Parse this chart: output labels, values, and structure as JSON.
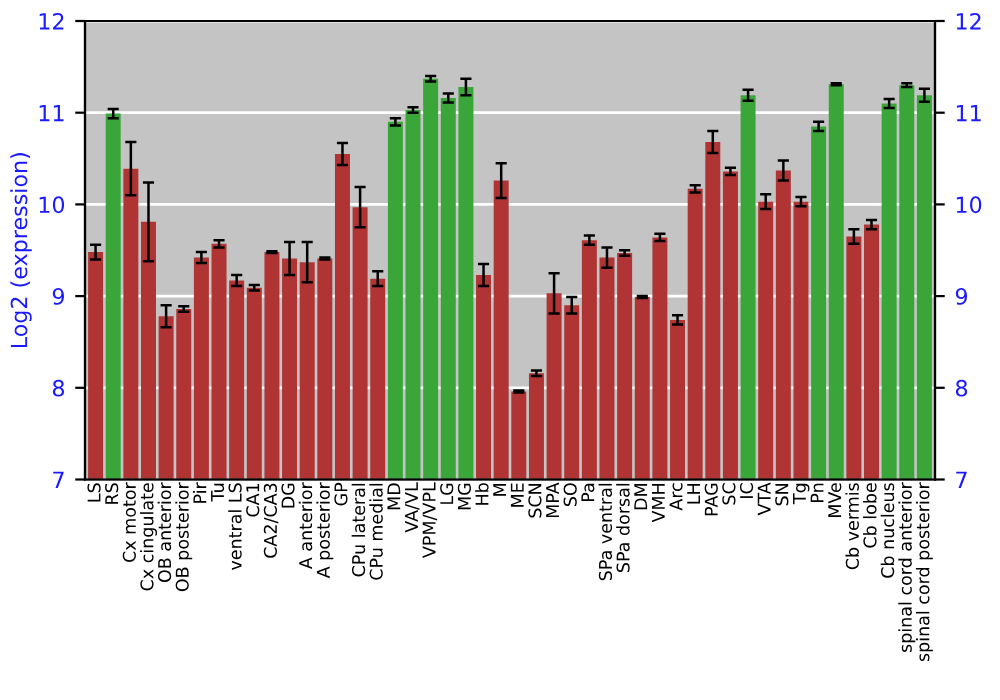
{
  "chart_data": {
    "type": "bar",
    "ylabel": "Log2 (expression)",
    "categories": [
      "LS",
      "RS",
      "Cx motor",
      "Cx cingulate",
      "OB anterior",
      "OB posterior",
      "Pir",
      "Tu",
      "ventral LS",
      "CA1",
      "CA2/CA3",
      "DG",
      "A anterior",
      "A posterior",
      "GP",
      "CPu lateral",
      "CPu medial",
      "MD",
      "VA/VL",
      "VPM/VPL",
      "LG",
      "MG",
      "Hb",
      "M",
      "ME",
      "SCN",
      "MPA",
      "SO",
      "Pa",
      "SPa ventral",
      "SPa dorsal",
      "DM",
      "VMH",
      "Arc",
      "LH",
      "PAG",
      "SC",
      "IC",
      "VTA",
      "SN",
      "Tg",
      "Pn",
      "MVe",
      "Cb vermis",
      "Cb lobe",
      "Cb nucleus",
      "spinal cord anterior",
      "spinal cord posterior"
    ],
    "values": [
      9.48,
      10.99,
      10.39,
      9.81,
      8.78,
      8.86,
      9.42,
      9.57,
      9.17,
      9.09,
      9.48,
      9.41,
      9.37,
      9.41,
      10.55,
      9.97,
      9.19,
      10.9,
      11.03,
      11.37,
      11.16,
      11.28,
      9.23,
      10.26,
      7.96,
      8.16,
      9.03,
      8.9,
      9.61,
      9.42,
      9.47,
      8.99,
      9.64,
      8.74,
      10.17,
      10.68,
      10.36,
      11.19,
      10.03,
      10.37,
      10.03,
      10.85,
      11.31,
      9.65,
      9.78,
      11.1,
      11.3,
      11.19
    ],
    "errors": [
      0.08,
      0.05,
      0.29,
      0.43,
      0.12,
      0.03,
      0.06,
      0.04,
      0.06,
      0.03,
      0.01,
      0.18,
      0.22,
      0.01,
      0.12,
      0.22,
      0.08,
      0.04,
      0.03,
      0.03,
      0.05,
      0.09,
      0.12,
      0.19,
      0.01,
      0.03,
      0.22,
      0.09,
      0.05,
      0.11,
      0.03,
      0.01,
      0.04,
      0.05,
      0.04,
      0.12,
      0.04,
      0.06,
      0.08,
      0.11,
      0.05,
      0.05,
      0.01,
      0.08,
      0.05,
      0.05,
      0.02,
      0.07
    ],
    "colors": [
      "#b03434",
      "#3aa63a",
      "#b03434",
      "#b03434",
      "#b03434",
      "#b03434",
      "#b03434",
      "#b03434",
      "#b03434",
      "#b03434",
      "#b03434",
      "#b03434",
      "#b03434",
      "#b03434",
      "#b03434",
      "#b03434",
      "#b03434",
      "#3aa63a",
      "#3aa63a",
      "#3aa63a",
      "#3aa63a",
      "#3aa63a",
      "#b03434",
      "#b03434",
      "#b03434",
      "#b03434",
      "#b03434",
      "#b03434",
      "#b03434",
      "#b03434",
      "#b03434",
      "#b03434",
      "#b03434",
      "#b03434",
      "#b03434",
      "#b03434",
      "#b03434",
      "#3aa63a",
      "#b03434",
      "#b03434",
      "#b03434",
      "#3aa63a",
      "#3aa63a",
      "#b03434",
      "#b03434",
      "#3aa63a",
      "#3aa63a",
      "#3aa63a"
    ],
    "ylim": [
      7,
      12
    ],
    "yticks": [
      7,
      8,
      9,
      10,
      11,
      12
    ],
    "y2lim": [
      7,
      12
    ],
    "y2ticks": [
      7,
      8,
      9,
      10,
      11,
      12
    ],
    "grid": "y"
  }
}
